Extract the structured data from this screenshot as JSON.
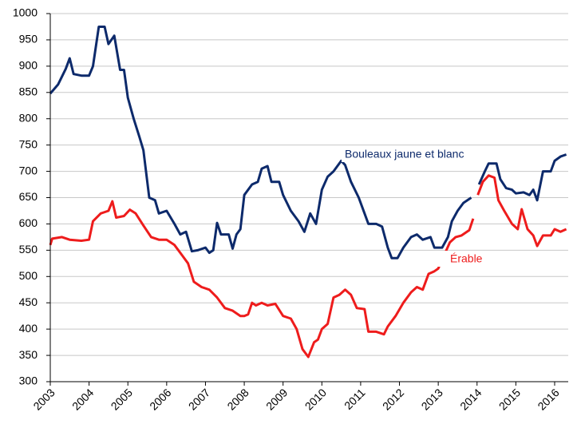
{
  "chart_data": {
    "type": "line",
    "xlim": [
      2003,
      2016.35
    ],
    "xticks": [
      2003,
      2004,
      2005,
      2006,
      2007,
      2008,
      2009,
      2010,
      2011,
      2012,
      2013,
      2014,
      2015,
      2016
    ],
    "ylim": [
      300,
      1000
    ],
    "yticks": [
      300,
      350,
      400,
      450,
      500,
      550,
      600,
      650,
      700,
      750,
      800,
      850,
      900,
      950,
      1000
    ],
    "grid": true,
    "annotations": [
      "Bouleaux jaune et blanc",
      "Érable"
    ],
    "series": [
      {
        "name": "Bouleaux jaune et blanc",
        "color": "#0d2a6b",
        "x": [
          2003,
          2003.2,
          2003.4,
          2003.5,
          2003.6,
          2003.8,
          2004.0,
          2004.1,
          2004.25,
          2004.4,
          2004.5,
          2004.65,
          2004.8,
          2004.9,
          2005.0,
          2005.15,
          2005.3,
          2005.4,
          2005.55,
          2005.7,
          2005.8,
          2006.0,
          2006.2,
          2006.35,
          2006.5,
          2006.65,
          2006.8,
          2007.0,
          2007.1,
          2007.2,
          2007.3,
          2007.4,
          2007.6,
          2007.7,
          2007.8,
          2007.9,
          2008.0,
          2008.2,
          2008.35,
          2008.45,
          2008.6,
          2008.7,
          2008.9,
          2009.0,
          2009.2,
          2009.4,
          2009.55,
          2009.7,
          2009.85,
          2010.0,
          2010.15,
          2010.3,
          2010.5,
          2010.6,
          2010.75,
          2010.95,
          2011.1,
          2011.2,
          2011.4,
          2011.55,
          2011.7,
          2011.8,
          2011.95,
          2012.1,
          2012.3,
          2012.45,
          2012.6,
          2012.8,
          2012.9,
          2013.1,
          2013.25,
          2013.35,
          2013.5,
          2013.65,
          2013.85,
          2013.95,
          2014.05,
          2014.2,
          2014.3,
          2014.5,
          2014.6,
          2014.75,
          2014.9,
          2015.0,
          2015.2,
          2015.35,
          2015.45,
          2015.55,
          2015.7,
          2015.9,
          2016.0,
          2016.15,
          2016.3
        ],
        "values": [
          848,
          865,
          895,
          915,
          885,
          882,
          882,
          900,
          975,
          975,
          942,
          958,
          893,
          893,
          840,
          800,
          765,
          740,
          650,
          645,
          620,
          625,
          600,
          580,
          585,
          548,
          550,
          555,
          545,
          550,
          602,
          580,
          580,
          553,
          580,
          590,
          655,
          675,
          680,
          705,
          710,
          680,
          680,
          655,
          625,
          605,
          585,
          620,
          600,
          665,
          690,
          700,
          720,
          712,
          680,
          650,
          620,
          600,
          600,
          595,
          555,
          535,
          535,
          555,
          575,
          580,
          570,
          575,
          555,
          555,
          575,
          605,
          625,
          640,
          650,
          null,
          675,
          700,
          715,
          715,
          685,
          668,
          665,
          658,
          660,
          655,
          665,
          645,
          700,
          700,
          720,
          728,
          732
        ]
      },
      {
        "name": "Érable",
        "color": "#ee1c1c",
        "x": [
          2003,
          2003.05,
          2003.3,
          2003.5,
          2003.8,
          2004.0,
          2004.1,
          2004.3,
          2004.5,
          2004.6,
          2004.7,
          2004.9,
          2005.05,
          2005.2,
          2005.4,
          2005.6,
          2005.8,
          2006.0,
          2006.2,
          2006.4,
          2006.55,
          2006.7,
          2006.9,
          2007.1,
          2007.3,
          2007.5,
          2007.7,
          2007.9,
          2008.0,
          2008.1,
          2008.2,
          2008.3,
          2008.45,
          2008.6,
          2008.8,
          2009.0,
          2009.2,
          2009.35,
          2009.5,
          2009.65,
          2009.8,
          2009.9,
          2010.0,
          2010.15,
          2010.3,
          2010.45,
          2010.6,
          2010.75,
          2010.9,
          2011.1,
          2011.2,
          2011.4,
          2011.6,
          2011.7,
          2011.9,
          2012.1,
          2012.3,
          2012.45,
          2012.6,
          2012.75,
          2012.9,
          2013.0,
          2013.15,
          2013.3,
          2013.45,
          2013.6,
          2013.8,
          2013.9,
          2013.95,
          2014.02,
          2014.15,
          2014.3,
          2014.45,
          2014.55,
          2014.7,
          2014.9,
          2015.05,
          2015.15,
          2015.3,
          2015.45,
          2015.55,
          2015.7,
          2015.9,
          2016.0,
          2016.15,
          2016.3
        ],
        "values": [
          560,
          572,
          575,
          570,
          568,
          570,
          605,
          620,
          625,
          643,
          612,
          615,
          627,
          620,
          597,
          575,
          570,
          570,
          560,
          540,
          525,
          490,
          480,
          475,
          460,
          440,
          435,
          425,
          425,
          428,
          450,
          445,
          450,
          445,
          448,
          425,
          420,
          400,
          362,
          347,
          375,
          380,
          400,
          410,
          460,
          465,
          475,
          465,
          440,
          438,
          395,
          395,
          390,
          405,
          425,
          450,
          470,
          480,
          475,
          505,
          510,
          515,
          540,
          565,
          575,
          578,
          588,
          610,
          null,
          655,
          680,
          692,
          688,
          645,
          625,
          600,
          590,
          628,
          590,
          578,
          558,
          578,
          578,
          590,
          585,
          590
        ]
      }
    ]
  }
}
